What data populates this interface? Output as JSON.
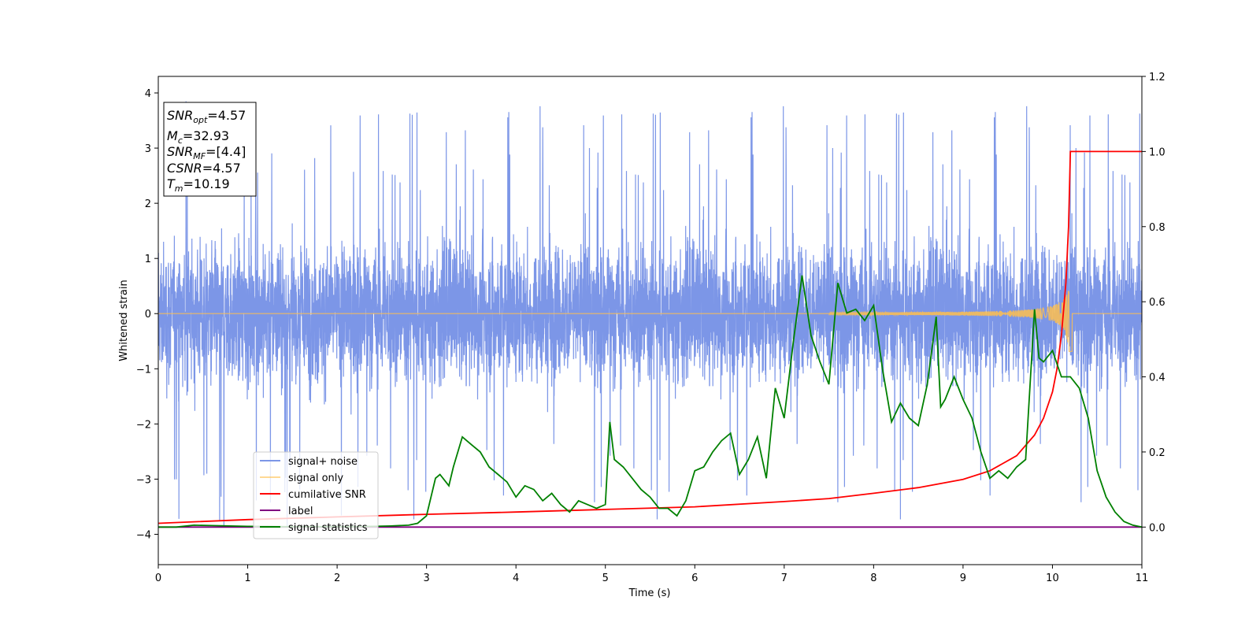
{
  "chart_data": {
    "type": "line",
    "xlabel": "Time (s)",
    "ylabel": "Whitened strain",
    "xlim": [
      0,
      11
    ],
    "ylim_left": [
      -4.55,
      4.3
    ],
    "ylim_right": [
      -0.1,
      1.2
    ],
    "x_ticks": [
      "0",
      "1",
      "2",
      "3",
      "4",
      "5",
      "6",
      "7",
      "8",
      "9",
      "10",
      "11"
    ],
    "y_ticks_left": [
      "−4",
      "−3",
      "−2",
      "−1",
      "0",
      "1",
      "2",
      "3",
      "4"
    ],
    "y_ticks_right": [
      "0.0",
      "0.2",
      "0.4",
      "0.6",
      "0.8",
      "1.0",
      "1.2"
    ],
    "info_box": [
      {
        "sym": "SNR",
        "sub": "opt",
        "rest": "=4.57"
      },
      {
        "sym": "M",
        "sub": "c",
        "rest": "=32.93"
      },
      {
        "sym": "SNR",
        "sub": "MF",
        "rest": "=[4.4]"
      },
      {
        "sym": "CSNR",
        "sub": "",
        "rest": "=4.57"
      },
      {
        "sym": "T",
        "sub": "m",
        "rest": "=10.19"
      }
    ],
    "legend_position": "lower-left",
    "series": [
      {
        "name": "signal+ noise",
        "color": "#7590e6",
        "axis": "left",
        "description_values": {
          "band_low": -2.0,
          "band_high": 2.0,
          "max_spike": 3.9,
          "min_spike": -4.15
        }
      },
      {
        "name": "signal only",
        "color": "#ffc04d",
        "axis": "left",
        "chirp": {
          "flat_until": 7.5,
          "peak_time": 10.19,
          "peak_amplitude": 0.95
        }
      },
      {
        "name": "cumilative SNR",
        "color": "#ff0000",
        "axis": "right",
        "x": [
          0,
          1,
          2,
          3,
          4,
          5,
          6,
          7,
          7.5,
          8,
          8.5,
          9,
          9.3,
          9.6,
          9.8,
          9.9,
          10.0,
          10.05,
          10.1,
          10.15,
          10.18,
          10.2,
          10.25,
          11
        ],
        "y": [
          0.01,
          0.02,
          0.027,
          0.034,
          0.04,
          0.047,
          0.054,
          0.068,
          0.076,
          0.09,
          0.105,
          0.127,
          0.15,
          0.19,
          0.245,
          0.29,
          0.36,
          0.42,
          0.51,
          0.65,
          0.8,
          1.0,
          1.0,
          1.0
        ]
      },
      {
        "name": "label",
        "color": "#800080",
        "axis": "right",
        "x": [
          0,
          11
        ],
        "y": [
          0,
          0
        ]
      },
      {
        "name": "signal statistics",
        "color": "#008000",
        "axis": "right",
        "x": [
          0,
          0.2,
          0.4,
          0.6,
          0.8,
          1.0,
          1.2,
          1.4,
          1.6,
          1.8,
          2.0,
          2.2,
          2.4,
          2.6,
          2.8,
          2.9,
          3.0,
          3.1,
          3.15,
          3.25,
          3.3,
          3.4,
          3.5,
          3.6,
          3.7,
          3.8,
          3.9,
          4.0,
          4.1,
          4.2,
          4.3,
          4.4,
          4.5,
          4.6,
          4.7,
          4.8,
          4.9,
          5.0,
          5.05,
          5.1,
          5.2,
          5.3,
          5.4,
          5.5,
          5.6,
          5.7,
          5.8,
          5.9,
          6.0,
          6.1,
          6.2,
          6.3,
          6.4,
          6.5,
          6.6,
          6.7,
          6.8,
          6.9,
          7.0,
          7.1,
          7.2,
          7.3,
          7.4,
          7.5,
          7.6,
          7.7,
          7.8,
          7.9,
          8.0,
          8.1,
          8.2,
          8.3,
          8.4,
          8.5,
          8.6,
          8.7,
          8.75,
          8.8,
          8.9,
          9.0,
          9.1,
          9.2,
          9.3,
          9.4,
          9.5,
          9.6,
          9.7,
          9.8,
          9.85,
          9.9,
          10.0,
          10.1,
          10.2,
          10.3,
          10.4,
          10.5,
          10.6,
          10.7,
          10.8,
          10.9,
          11.0
        ],
        "y": [
          0.0,
          0.0,
          0.005,
          0.004,
          0.003,
          0.002,
          0.002,
          0.001,
          0.001,
          0.001,
          0.001,
          0.001,
          0.002,
          0.003,
          0.005,
          0.01,
          0.03,
          0.13,
          0.14,
          0.11,
          0.16,
          0.24,
          0.22,
          0.2,
          0.16,
          0.14,
          0.12,
          0.08,
          0.11,
          0.1,
          0.07,
          0.09,
          0.06,
          0.04,
          0.07,
          0.06,
          0.05,
          0.06,
          0.28,
          0.18,
          0.16,
          0.13,
          0.1,
          0.08,
          0.05,
          0.05,
          0.03,
          0.07,
          0.15,
          0.16,
          0.2,
          0.23,
          0.25,
          0.14,
          0.18,
          0.24,
          0.13,
          0.37,
          0.29,
          0.49,
          0.67,
          0.51,
          0.44,
          0.38,
          0.65,
          0.57,
          0.58,
          0.55,
          0.59,
          0.42,
          0.28,
          0.33,
          0.29,
          0.27,
          0.38,
          0.56,
          0.32,
          0.34,
          0.4,
          0.34,
          0.29,
          0.2,
          0.13,
          0.15,
          0.13,
          0.16,
          0.18,
          0.58,
          0.45,
          0.44,
          0.47,
          0.4,
          0.4,
          0.37,
          0.29,
          0.15,
          0.08,
          0.04,
          0.015,
          0.005,
          0.0
        ]
      }
    ]
  }
}
